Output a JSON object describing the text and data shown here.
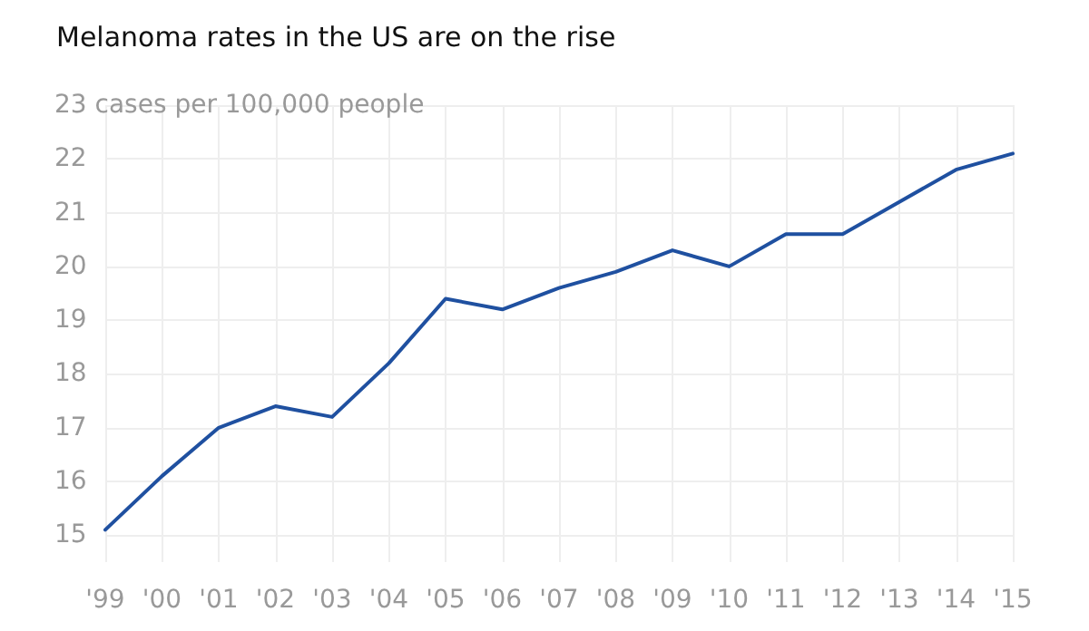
{
  "chart_data": {
    "type": "line",
    "title": "Melanoma rates in the US are on the rise",
    "categories": [
      "'99",
      "'00",
      "'01",
      "'02",
      "'03",
      "'04",
      "'05",
      "'06",
      "'07",
      "'08",
      "'09",
      "'10",
      "'11",
      "'12",
      "'13",
      "'14",
      "'15"
    ],
    "series": [
      {
        "color": "#1f50a0",
        "values": [
          15.1,
          16.1,
          17.0,
          17.4,
          17.2,
          18.2,
          19.4,
          19.2,
          19.6,
          19.9,
          20.3,
          20.0,
          20.6,
          20.6,
          21.2,
          21.8,
          22.1
        ]
      }
    ],
    "ylim": [
      14.5,
      23
    ],
    "yticks": [
      15,
      16,
      17,
      18,
      19,
      20,
      21,
      22,
      {
        "value": 23,
        "label": "23 cases per 100,000 people"
      }
    ],
    "grid": true,
    "marker": "none",
    "line_style": "solid"
  }
}
